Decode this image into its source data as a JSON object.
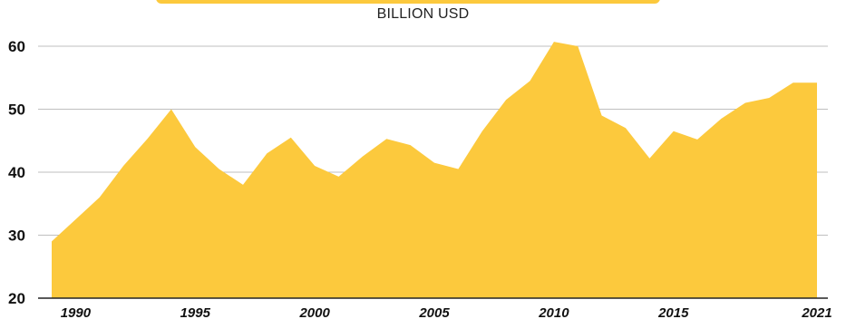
{
  "colors": {
    "area": "#fcc93d",
    "grid": "#bfbfbf",
    "baseline": "#222222",
    "text": "#111111"
  },
  "chart_data": {
    "type": "area",
    "ylabel": "BILLION USD",
    "ylim": [
      20,
      60
    ],
    "yticks": [
      "20",
      "30",
      "40",
      "50",
      "60"
    ],
    "xticks": [
      "1990",
      "1995",
      "2000",
      "2005",
      "2010",
      "2015",
      "2021"
    ],
    "grid": true,
    "x": [
      1989,
      1990,
      1991,
      1992,
      1993,
      1994,
      1995,
      1996,
      1997,
      1998,
      1999,
      2000,
      2001,
      2002,
      2003,
      2004,
      2005,
      2006,
      2007,
      2008,
      2009,
      2010,
      2011,
      2012,
      2013,
      2014,
      2015,
      2016,
      2017,
      2018,
      2019,
      2020,
      2021
    ],
    "y": [
      29,
      32.5,
      36,
      41,
      45.3,
      50,
      44,
      40.5,
      38,
      43,
      45.5,
      41,
      39.3,
      42.5,
      45.3,
      44.3,
      41.5,
      40.5,
      46.5,
      51.5,
      54.5,
      60.7,
      60,
      49,
      47,
      42.2,
      46.5,
      45.2,
      48.5,
      51,
      51.8,
      54.2,
      54.2
    ]
  }
}
